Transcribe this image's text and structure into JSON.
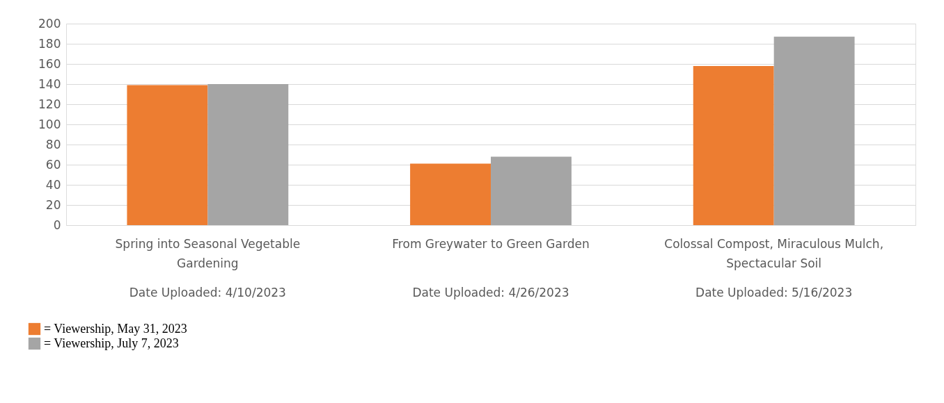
{
  "chart_data": {
    "type": "bar",
    "categories": [
      "Spring into Seasonal Vegetable Gardening",
      "From Greywater to Green Garden",
      "Colossal Compost, Miraculous Mulch, Spectacular Soil"
    ],
    "series": [
      {
        "name": "= Viewership, May 31, 2023",
        "color": "#ed7d31",
        "values": [
          139,
          61,
          158
        ]
      },
      {
        "name": "= Viewership, July 7, 2023",
        "color": "#a5a5a5",
        "values": [
          140,
          68,
          187
        ]
      }
    ],
    "annotations": [
      "Date Uploaded: 4/10/2023",
      "Date Uploaded: 4/26/2023",
      "Date Uploaded: 5/16/2023"
    ],
    "ylim": [
      0,
      200
    ],
    "yticks": [
      0,
      20,
      40,
      60,
      80,
      100,
      120,
      140,
      160,
      180,
      200
    ],
    "grid": "y",
    "legend": "bottom left"
  }
}
